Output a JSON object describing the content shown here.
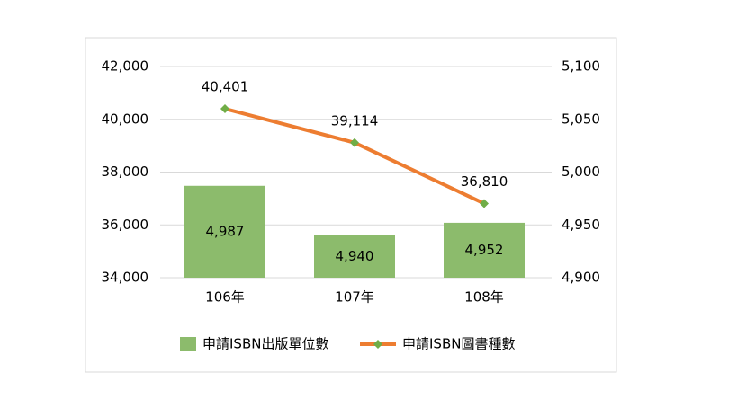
{
  "chart_data": {
    "type": "combo",
    "categories": [
      "106年",
      "107年",
      "108年"
    ],
    "series": [
      {
        "name": "申請ISBN出版單位數",
        "type": "bar",
        "axis": "y2",
        "color": "#8cbb6c",
        "values": [
          4987,
          4940,
          4952
        ],
        "value_labels": [
          "4,987",
          "4,940",
          "4,952"
        ]
      },
      {
        "name": "申請ISBN圖書種數",
        "type": "line",
        "color": "#ed7d31",
        "marker_color": "#70ad47",
        "values": [
          40401,
          39114,
          36810
        ],
        "value_labels": [
          "40,401",
          "39,114",
          "36,810"
        ]
      }
    ],
    "ylim": [
      34000,
      42000
    ],
    "yticks": [
      {
        "value": 34000,
        "label": "34,000"
      },
      {
        "value": 36000,
        "label": "36,000"
      },
      {
        "value": 38000,
        "label": "38,000"
      },
      {
        "value": 40000,
        "label": "40,000"
      },
      {
        "value": 42000,
        "label": "42,000"
      }
    ],
    "y2lim": [
      4900,
      5100
    ],
    "y2ticks": [
      {
        "value": 4900,
        "label": "4,900"
      },
      {
        "value": 4950,
        "label": "4,950"
      },
      {
        "value": 5000,
        "label": "5,000"
      },
      {
        "value": 5050,
        "label": "5,050"
      },
      {
        "value": 5100,
        "label": "5,100"
      }
    ],
    "grid": true,
    "legend": "bottom"
  }
}
